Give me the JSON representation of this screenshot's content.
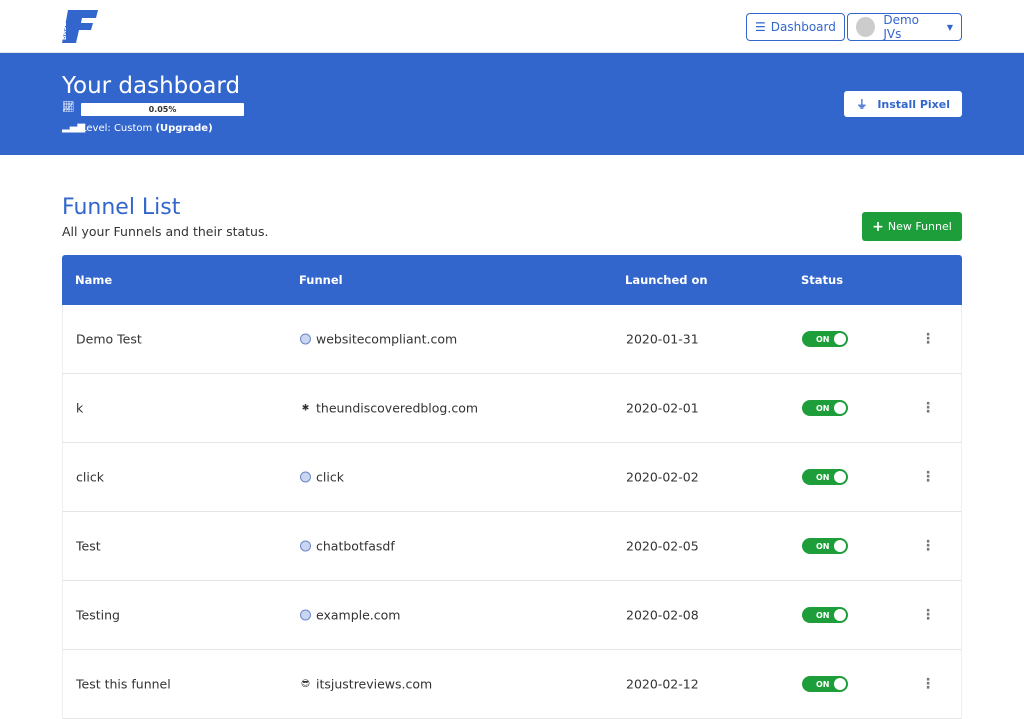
{
  "header": {
    "logo_text": "BASE F",
    "dashboard_label": "Dashboard",
    "user_label": "Demo JVs"
  },
  "hero": {
    "title": "Your dashboard",
    "progress_label": "0.05%",
    "progress_percent": 0.05,
    "level_prefix": "Level: Custom ",
    "upgrade_label": "(Upgrade)",
    "install_label": "Install Pixel"
  },
  "main": {
    "title": "Funnel List",
    "subtitle": "All your Funnels and their status.",
    "new_funnel_label": "New Funnel"
  },
  "table": {
    "columns": [
      "Name",
      "Funnel",
      "Launched on",
      "Status"
    ],
    "rows": [
      {
        "name": "Demo Test",
        "funnel": "websitecompliant.com",
        "icon": "globe-icon",
        "launched": "2020-01-31",
        "status": "ON"
      },
      {
        "name": "k",
        "funnel": "theundiscoveredblog.com",
        "icon": "favicon-icon",
        "launched": "2020-02-01",
        "status": "ON"
      },
      {
        "name": "click",
        "funnel": "click",
        "icon": "globe-icon",
        "launched": "2020-02-02",
        "status": "ON"
      },
      {
        "name": "Test",
        "funnel": "chatbotfasdf",
        "icon": "globe-icon",
        "launched": "2020-02-05",
        "status": "ON"
      },
      {
        "name": "Testing",
        "funnel": "example.com",
        "icon": "globe-icon",
        "launched": "2020-02-08",
        "status": "ON"
      },
      {
        "name": "Test this funnel",
        "funnel": "itsjustreviews.com",
        "icon": "favicon-icon",
        "launched": "2020-02-12",
        "status": "ON"
      }
    ]
  },
  "colors": {
    "primary": "#3366cc",
    "success": "#1e9e3a"
  }
}
